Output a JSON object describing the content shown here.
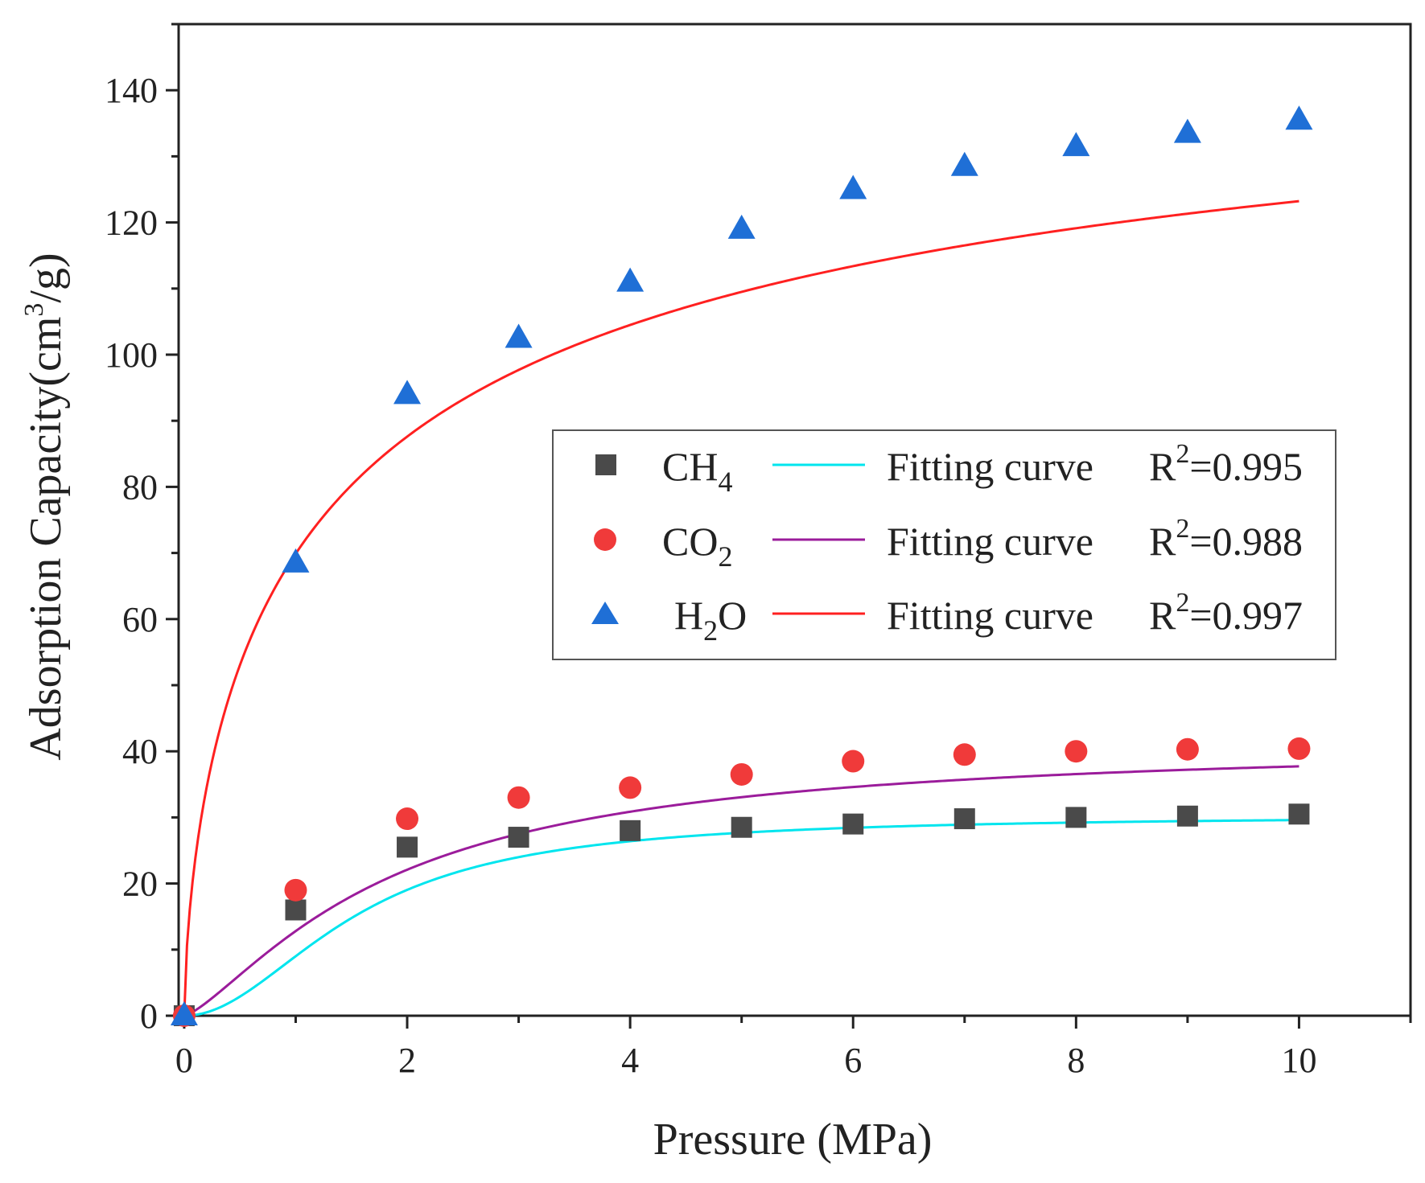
{
  "chart_data": {
    "type": "scatter",
    "title": "",
    "xlabel": "Pressure (MPa)",
    "ylabel": "Adsorption Capacity(cm³/g)",
    "ylabel_parts": {
      "pre": "Adsorption Capacity(cm",
      "sup": "3",
      "post": "/g)"
    },
    "xlim": [
      -0.05,
      11
    ],
    "ylim": [
      0,
      150
    ],
    "xticks": [
      0,
      2,
      4,
      6,
      8,
      10
    ],
    "yticks": [
      0,
      20,
      40,
      60,
      80,
      100,
      120,
      140
    ],
    "grid": false,
    "legend_position": "center-right",
    "series": [
      {
        "name": "CH4",
        "label_main": "CH",
        "label_sub": "4",
        "marker": "square",
        "color": "#4a4a4a",
        "fit_color": "#00e5ee",
        "fit_label": "Fitting curve",
        "r2_value": "=0.995",
        "x": [
          0,
          1,
          2,
          3,
          4,
          5,
          6,
          7,
          8,
          9,
          10
        ],
        "y": [
          0,
          16,
          25.5,
          27,
          28,
          28.5,
          29,
          29.8,
          30,
          30.2,
          30.5
        ],
        "fit": {
          "qm": 30.3,
          "b": 0.65,
          "n": 2.0
        }
      },
      {
        "name": "CO2",
        "label_main": "CO",
        "label_sub": "2",
        "marker": "circle",
        "color": "#f03a3a",
        "fit_color": "#9b1c9b",
        "fit_label": "Fitting curve",
        "r2_value": "=0.988",
        "x": [
          0,
          1,
          2,
          3,
          4,
          5,
          6,
          7,
          8,
          9,
          10
        ],
        "y": [
          0,
          19,
          29.8,
          33,
          34.5,
          36.5,
          38.5,
          39.5,
          40,
          40.3,
          40.4
        ],
        "fit": {
          "qm": 41.5,
          "b": 0.55,
          "n": 1.35
        }
      },
      {
        "name": "H2O",
        "label_main": "H",
        "label_sub": "2",
        "label_post": "O",
        "marker": "triangle",
        "color": "#1f6fd6",
        "fit_color": "#ff2020",
        "fit_label": "Fitting curve",
        "r2_value": "=0.997",
        "x": [
          0,
          1,
          2,
          3,
          4,
          5,
          6,
          7,
          8,
          9,
          10
        ],
        "y": [
          0,
          68.5,
          94,
          102.5,
          111,
          119,
          125,
          128.5,
          131.5,
          133.5,
          135.5
        ],
        "fit": {
          "qm": 158.0,
          "b": 0.7,
          "n": 0.65
        }
      }
    ],
    "r2_prefix": "R",
    "r2_sup": "2"
  }
}
